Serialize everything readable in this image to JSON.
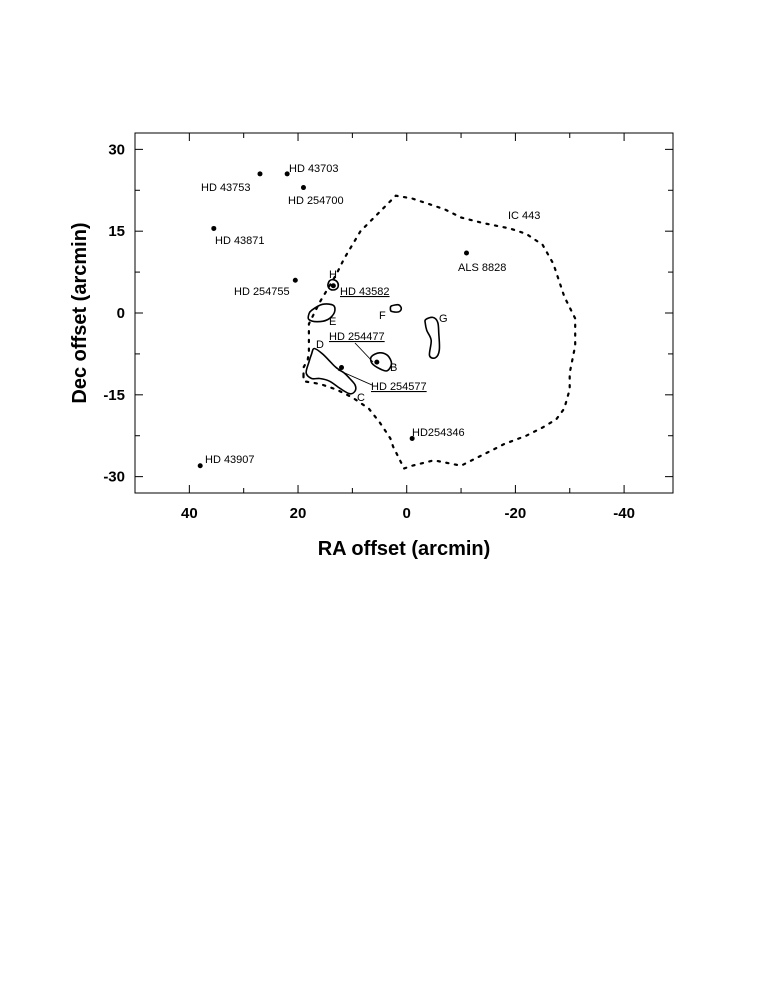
{
  "chart_data": {
    "type": "scatter",
    "title": "",
    "xlabel": "RA offset (arcmin)",
    "ylabel": "Dec offset (arcmin)",
    "xlim": [
      50,
      -49
    ],
    "ylim": [
      -33,
      33
    ],
    "x_inverted": true,
    "grid": false,
    "x_ticks": [
      40,
      20,
      0,
      -20,
      -40
    ],
    "x_tick_labels": [
      "40",
      "20",
      "0",
      "-20",
      "-40"
    ],
    "y_ticks": [
      30,
      15,
      0,
      -15,
      -30
    ],
    "y_tick_labels": [
      "30",
      "15",
      "0",
      "-15",
      "-30"
    ],
    "stars": [
      {
        "name": "HD 43703",
        "x": 22.0,
        "y": 25.5,
        "underlined": false
      },
      {
        "name": "HD 43753",
        "x": 27.0,
        "y": 25.5,
        "underlined": false
      },
      {
        "name": "HD 254700",
        "x": 19.0,
        "y": 23.0,
        "underlined": false
      },
      {
        "name": "HD 43871",
        "x": 35.5,
        "y": 15.5,
        "underlined": false
      },
      {
        "name": "HD 254755",
        "x": 20.5,
        "y": 6.0,
        "underlined": false
      },
      {
        "name": "HD 43582",
        "x": 13.5,
        "y": 5.0,
        "underlined": true
      },
      {
        "name": "ALS 8828",
        "x": -11.0,
        "y": 11.0,
        "underlined": false
      },
      {
        "name": "HD 254477",
        "x": 5.5,
        "y": -9.0,
        "underlined": true
      },
      {
        "name": "HD 254577",
        "x": 12.0,
        "y": -10.0,
        "underlined": true
      },
      {
        "name": "HD254346",
        "x": -1.0,
        "y": -23.0,
        "underlined": false
      },
      {
        "name": "HD 43907",
        "x": 38.0,
        "y": -28.0,
        "underlined": false
      }
    ],
    "regions": [
      {
        "name": "B",
        "outline": [
          [
            6.5,
            -8
          ],
          [
            5,
            -7.3
          ],
          [
            3.5,
            -7.8
          ],
          [
            2.8,
            -9.3
          ],
          [
            3.6,
            -10.6
          ],
          [
            5,
            -10.2
          ],
          [
            6.4,
            -9.2
          ]
        ]
      },
      {
        "name": "C",
        "outline": [
          [
            17,
            -6.5
          ],
          [
            15.5,
            -7.5
          ],
          [
            14,
            -9
          ],
          [
            13,
            -10
          ],
          [
            11.5,
            -11
          ],
          [
            10.5,
            -12
          ],
          [
            9.5,
            -13.2
          ],
          [
            9.5,
            -14.3
          ],
          [
            10.5,
            -14.8
          ],
          [
            12.3,
            -13.8
          ],
          [
            14.2,
            -12.5
          ],
          [
            16,
            -12
          ],
          [
            17.5,
            -12
          ],
          [
            18.5,
            -11
          ],
          [
            18,
            -9
          ],
          [
            17.5,
            -7.5
          ]
        ]
      },
      {
        "name": "E",
        "outline": [
          [
            17.5,
            0.5
          ],
          [
            15.5,
            1.6
          ],
          [
            13.5,
            1.4
          ],
          [
            13.3,
            0.1
          ],
          [
            14.5,
            -1.2
          ],
          [
            16.5,
            -1.6
          ],
          [
            18,
            -1.2
          ],
          [
            18,
            -0.2
          ]
        ]
      },
      {
        "name": "F",
        "outline": [
          [
            2.8,
            1.3
          ],
          [
            1.5,
            1.5
          ],
          [
            1.0,
            0.8
          ],
          [
            1.5,
            0.2
          ],
          [
            2.8,
            0.3
          ],
          [
            3.0,
            0.8
          ]
        ]
      },
      {
        "name": "G",
        "outline": [
          [
            -3.5,
            -1.2
          ],
          [
            -4.8,
            -0.8
          ],
          [
            -5.7,
            -1.7
          ],
          [
            -5.9,
            -3.8
          ],
          [
            -6,
            -6.8
          ],
          [
            -5.3,
            -8.2
          ],
          [
            -4.2,
            -7.8
          ],
          [
            -4.5,
            -5
          ],
          [
            -3.7,
            -3.2
          ],
          [
            -3.4,
            -1.8
          ]
        ]
      },
      {
        "name": "H",
        "outline": [
          [
            14.5,
            5
          ],
          [
            14.2,
            5.9
          ],
          [
            13.5,
            6.1
          ],
          [
            12.8,
            5.7
          ],
          [
            12.6,
            4.9
          ],
          [
            13.1,
            4.3
          ],
          [
            14,
            4.3
          ]
        ]
      }
    ],
    "remnant_boundary": {
      "name": "IC 443",
      "points": [
        [
          19,
          -11.5
        ],
        [
          19,
          -10
        ],
        [
          18.2,
          -8.5
        ],
        [
          18,
          -7
        ],
        [
          18,
          -4.5
        ],
        [
          18,
          -2
        ],
        [
          16,
          2
        ],
        [
          13,
          7
        ],
        [
          11.5,
          10
        ],
        [
          8.5,
          15
        ],
        [
          5,
          18.5
        ],
        [
          2,
          21.5
        ],
        [
          -1,
          21
        ],
        [
          -4,
          20
        ],
        [
          -7,
          19
        ],
        [
          -10,
          17.5
        ],
        [
          -14,
          16.5
        ],
        [
          -19,
          15.5
        ],
        [
          -22,
          14.5
        ],
        [
          -25,
          12.5
        ],
        [
          -27,
          9
        ],
        [
          -29,
          3
        ],
        [
          -31,
          -1
        ],
        [
          -31,
          -6
        ],
        [
          -30,
          -11
        ],
        [
          -30,
          -14
        ],
        [
          -29,
          -17.5
        ],
        [
          -27.5,
          -19.5
        ],
        [
          -25,
          -21
        ],
        [
          -22,
          -22.5
        ],
        [
          -18,
          -24
        ],
        [
          -16,
          -25
        ],
        [
          -13,
          -26.5
        ],
        [
          -10,
          -28
        ],
        [
          -5,
          -27
        ],
        [
          -1,
          -28
        ],
        [
          0.5,
          -28.5
        ],
        [
          1.5,
          -26.5
        ],
        [
          2.5,
          -24.5
        ],
        [
          3,
          -23
        ],
        [
          4,
          -21.5
        ],
        [
          5,
          -20
        ],
        [
          7,
          -17.5
        ],
        [
          10,
          -15.5
        ],
        [
          13,
          -14
        ],
        [
          16,
          -13
        ],
        [
          19,
          -12.5
        ]
      ]
    },
    "labels": {
      "B": "B",
      "C": "C",
      "D": "D",
      "E": "E",
      "F": "F",
      "G": "G",
      "H": "H",
      "IC443": "IC 443"
    }
  }
}
